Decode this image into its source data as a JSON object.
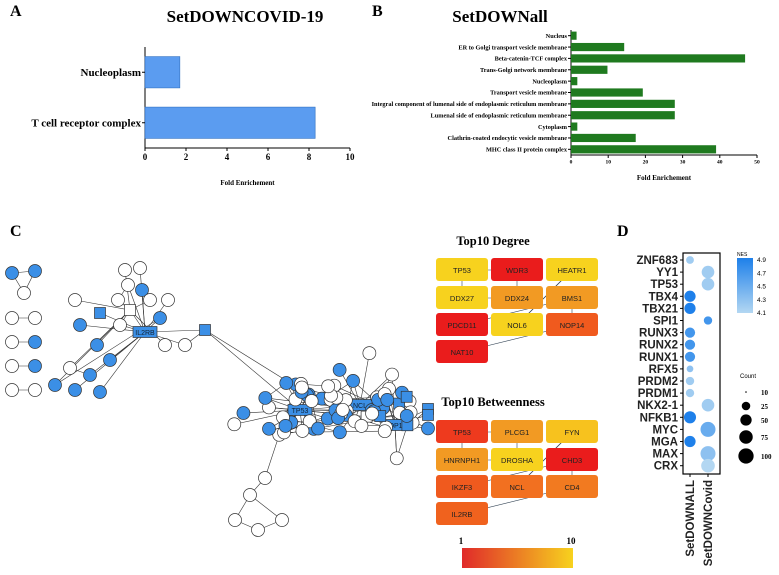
{
  "panel_labels": [
    "A",
    "B",
    "C",
    "D"
  ],
  "chart_data": [
    {
      "type": "bar",
      "orientation": "horizontal",
      "title": "SetDOWNCOVID-19",
      "xlabel": "Fold Enrichement",
      "categories": [
        "Nucleoplasm",
        "T cell receptor complex"
      ],
      "values": [
        1.7,
        8.3
      ],
      "xlim": [
        0,
        10
      ],
      "xticks": [
        "0",
        "2",
        "4",
        "6",
        "8",
        "10"
      ],
      "color": "#5b9cf0"
    },
    {
      "type": "bar",
      "orientation": "horizontal",
      "title": "SetDOWNall",
      "xlabel": "Fold Enrichement",
      "categories": [
        "Nucleus",
        "ER to Golgi transport vesicle membrane",
        "Beta-catenin-TCF complex",
        "Trans-Golgi network membrane",
        "Nucleoplasm",
        "Transport vesicle membrane",
        "Integral component of lumenal side of endoplasmic reticulum membrane",
        "Lumenal side of endoplasmic reticulum membrane",
        "Cytoplasm",
        "Clathrin-coated endocytic vesicle membrane",
        "MHC class II protein complex"
      ],
      "values": [
        1.5,
        14.3,
        46.8,
        9.8,
        1.7,
        19.3,
        27.9,
        27.9,
        1.7,
        17.4,
        39.0
      ],
      "xlim": [
        0,
        50
      ],
      "xticks": [
        "0",
        "10",
        "20",
        "30",
        "40",
        "50"
      ],
      "color": "#1f7a1f"
    },
    {
      "type": "network",
      "labeled_nodes": [
        "IL2RB",
        "TP53",
        "NCL",
        "NOP14"
      ],
      "node_color": "#3b8fe6",
      "top10_degree": {
        "title": "Top10 Degree",
        "genes": [
          {
            "name": "TP53",
            "color": "#f7d21e"
          },
          {
            "name": "WDR3",
            "color": "#ea1c1c"
          },
          {
            "name": "HEATR1",
            "color": "#f7d21e"
          },
          {
            "name": "DDX27",
            "color": "#f7d21e"
          },
          {
            "name": "DDX24",
            "color": "#f29a23"
          },
          {
            "name": "BMS1",
            "color": "#f29a23"
          },
          {
            "name": "PDCD11",
            "color": "#ea1c1c"
          },
          {
            "name": "NOL6",
            "color": "#f7d21e"
          },
          {
            "name": "NOP14",
            "color": "#f05a1e"
          },
          {
            "name": "NAT10",
            "color": "#ea1c1c"
          }
        ]
      },
      "top10_betweenness": {
        "title": "Top10 Betweenness",
        "genes": [
          {
            "name": "TP53",
            "color": "#ee3a1e"
          },
          {
            "name": "PLCG1",
            "color": "#f29a23"
          },
          {
            "name": "FYN",
            "color": "#f7c21e"
          },
          {
            "name": "HNRNPH1",
            "color": "#f29a23"
          },
          {
            "name": "DROSHA",
            "color": "#f7d21e"
          },
          {
            "name": "CHD3",
            "color": "#ea1c1c"
          },
          {
            "name": "IKZF3",
            "color": "#f05a1e"
          },
          {
            "name": "NCL",
            "color": "#f27020"
          },
          {
            "name": "CD4",
            "color": "#f27a20"
          },
          {
            "name": "IL2RB",
            "color": "#f0621e"
          }
        ]
      },
      "colorbar": {
        "min_label": "1",
        "max_label": "10",
        "low_color": "#e02a2a",
        "high_color": "#f7d21e"
      }
    },
    {
      "type": "scatter",
      "subtype": "dotplot",
      "columns": [
        "SetDOWNALL",
        "SetDOWNCovid"
      ],
      "rows": [
        "ZNF683",
        "YY1",
        "TP53",
        "TBX4",
        "TBX21",
        "SPI1",
        "RUNX3",
        "RUNX2",
        "RUNX1",
        "RFX5",
        "PRDM2",
        "PRDM1",
        "NKX2-1",
        "NFKB1",
        "MYC",
        "MGA",
        "MAX",
        "CRX"
      ],
      "points": [
        {
          "row": "ZNF683",
          "col": "SetDOWNALL",
          "count": 15,
          "nes": 4.2
        },
        {
          "row": "YY1",
          "col": "SetDOWNCovid",
          "count": 50,
          "nes": 4.2
        },
        {
          "row": "TP53",
          "col": "SetDOWNCovid",
          "count": 50,
          "nes": 4.2
        },
        {
          "row": "TBX4",
          "col": "SetDOWNALL",
          "count": 38,
          "nes": 4.9
        },
        {
          "row": "TBX21",
          "col": "SetDOWNALL",
          "count": 38,
          "nes": 4.9
        },
        {
          "row": "SPI1",
          "col": "SetDOWNCovid",
          "count": 18,
          "nes": 4.7
        },
        {
          "row": "RUNX3",
          "col": "SetDOWNALL",
          "count": 30,
          "nes": 4.7
        },
        {
          "row": "RUNX2",
          "col": "SetDOWNALL",
          "count": 30,
          "nes": 4.7
        },
        {
          "row": "RUNX1",
          "col": "SetDOWNALL",
          "count": 30,
          "nes": 4.7
        },
        {
          "row": "RFX5",
          "col": "SetDOWNALL",
          "count": 10,
          "nes": 4.3
        },
        {
          "row": "PRDM2",
          "col": "SetDOWNALL",
          "count": 18,
          "nes": 4.2
        },
        {
          "row": "PRDM1",
          "col": "SetDOWNALL",
          "count": 18,
          "nes": 4.2
        },
        {
          "row": "NKX2-1",
          "col": "SetDOWNCovid",
          "count": 50,
          "nes": 4.2
        },
        {
          "row": "NFKB1",
          "col": "SetDOWNALL",
          "count": 45,
          "nes": 4.9
        },
        {
          "row": "MYC",
          "col": "SetDOWNCovid",
          "count": 75,
          "nes": 4.5
        },
        {
          "row": "MGA",
          "col": "SetDOWNALL",
          "count": 38,
          "nes": 4.9
        },
        {
          "row": "MAX",
          "col": "SetDOWNCovid",
          "count": 75,
          "nes": 4.3
        },
        {
          "row": "CRX",
          "col": "SetDOWNCovid",
          "count": 60,
          "nes": 4.1
        }
      ],
      "nes_legend": {
        "title": "NES",
        "ticks": [
          "4.9",
          "4.7",
          "4.5",
          "4.3",
          "4.1"
        ],
        "range": [
          4.1,
          4.9
        ],
        "low_color": "#b3d7f2",
        "high_color": "#1e80ea"
      },
      "count_legend": {
        "title": "Count",
        "values": [
          "10",
          "25",
          "50",
          "75",
          "100"
        ]
      }
    }
  ]
}
